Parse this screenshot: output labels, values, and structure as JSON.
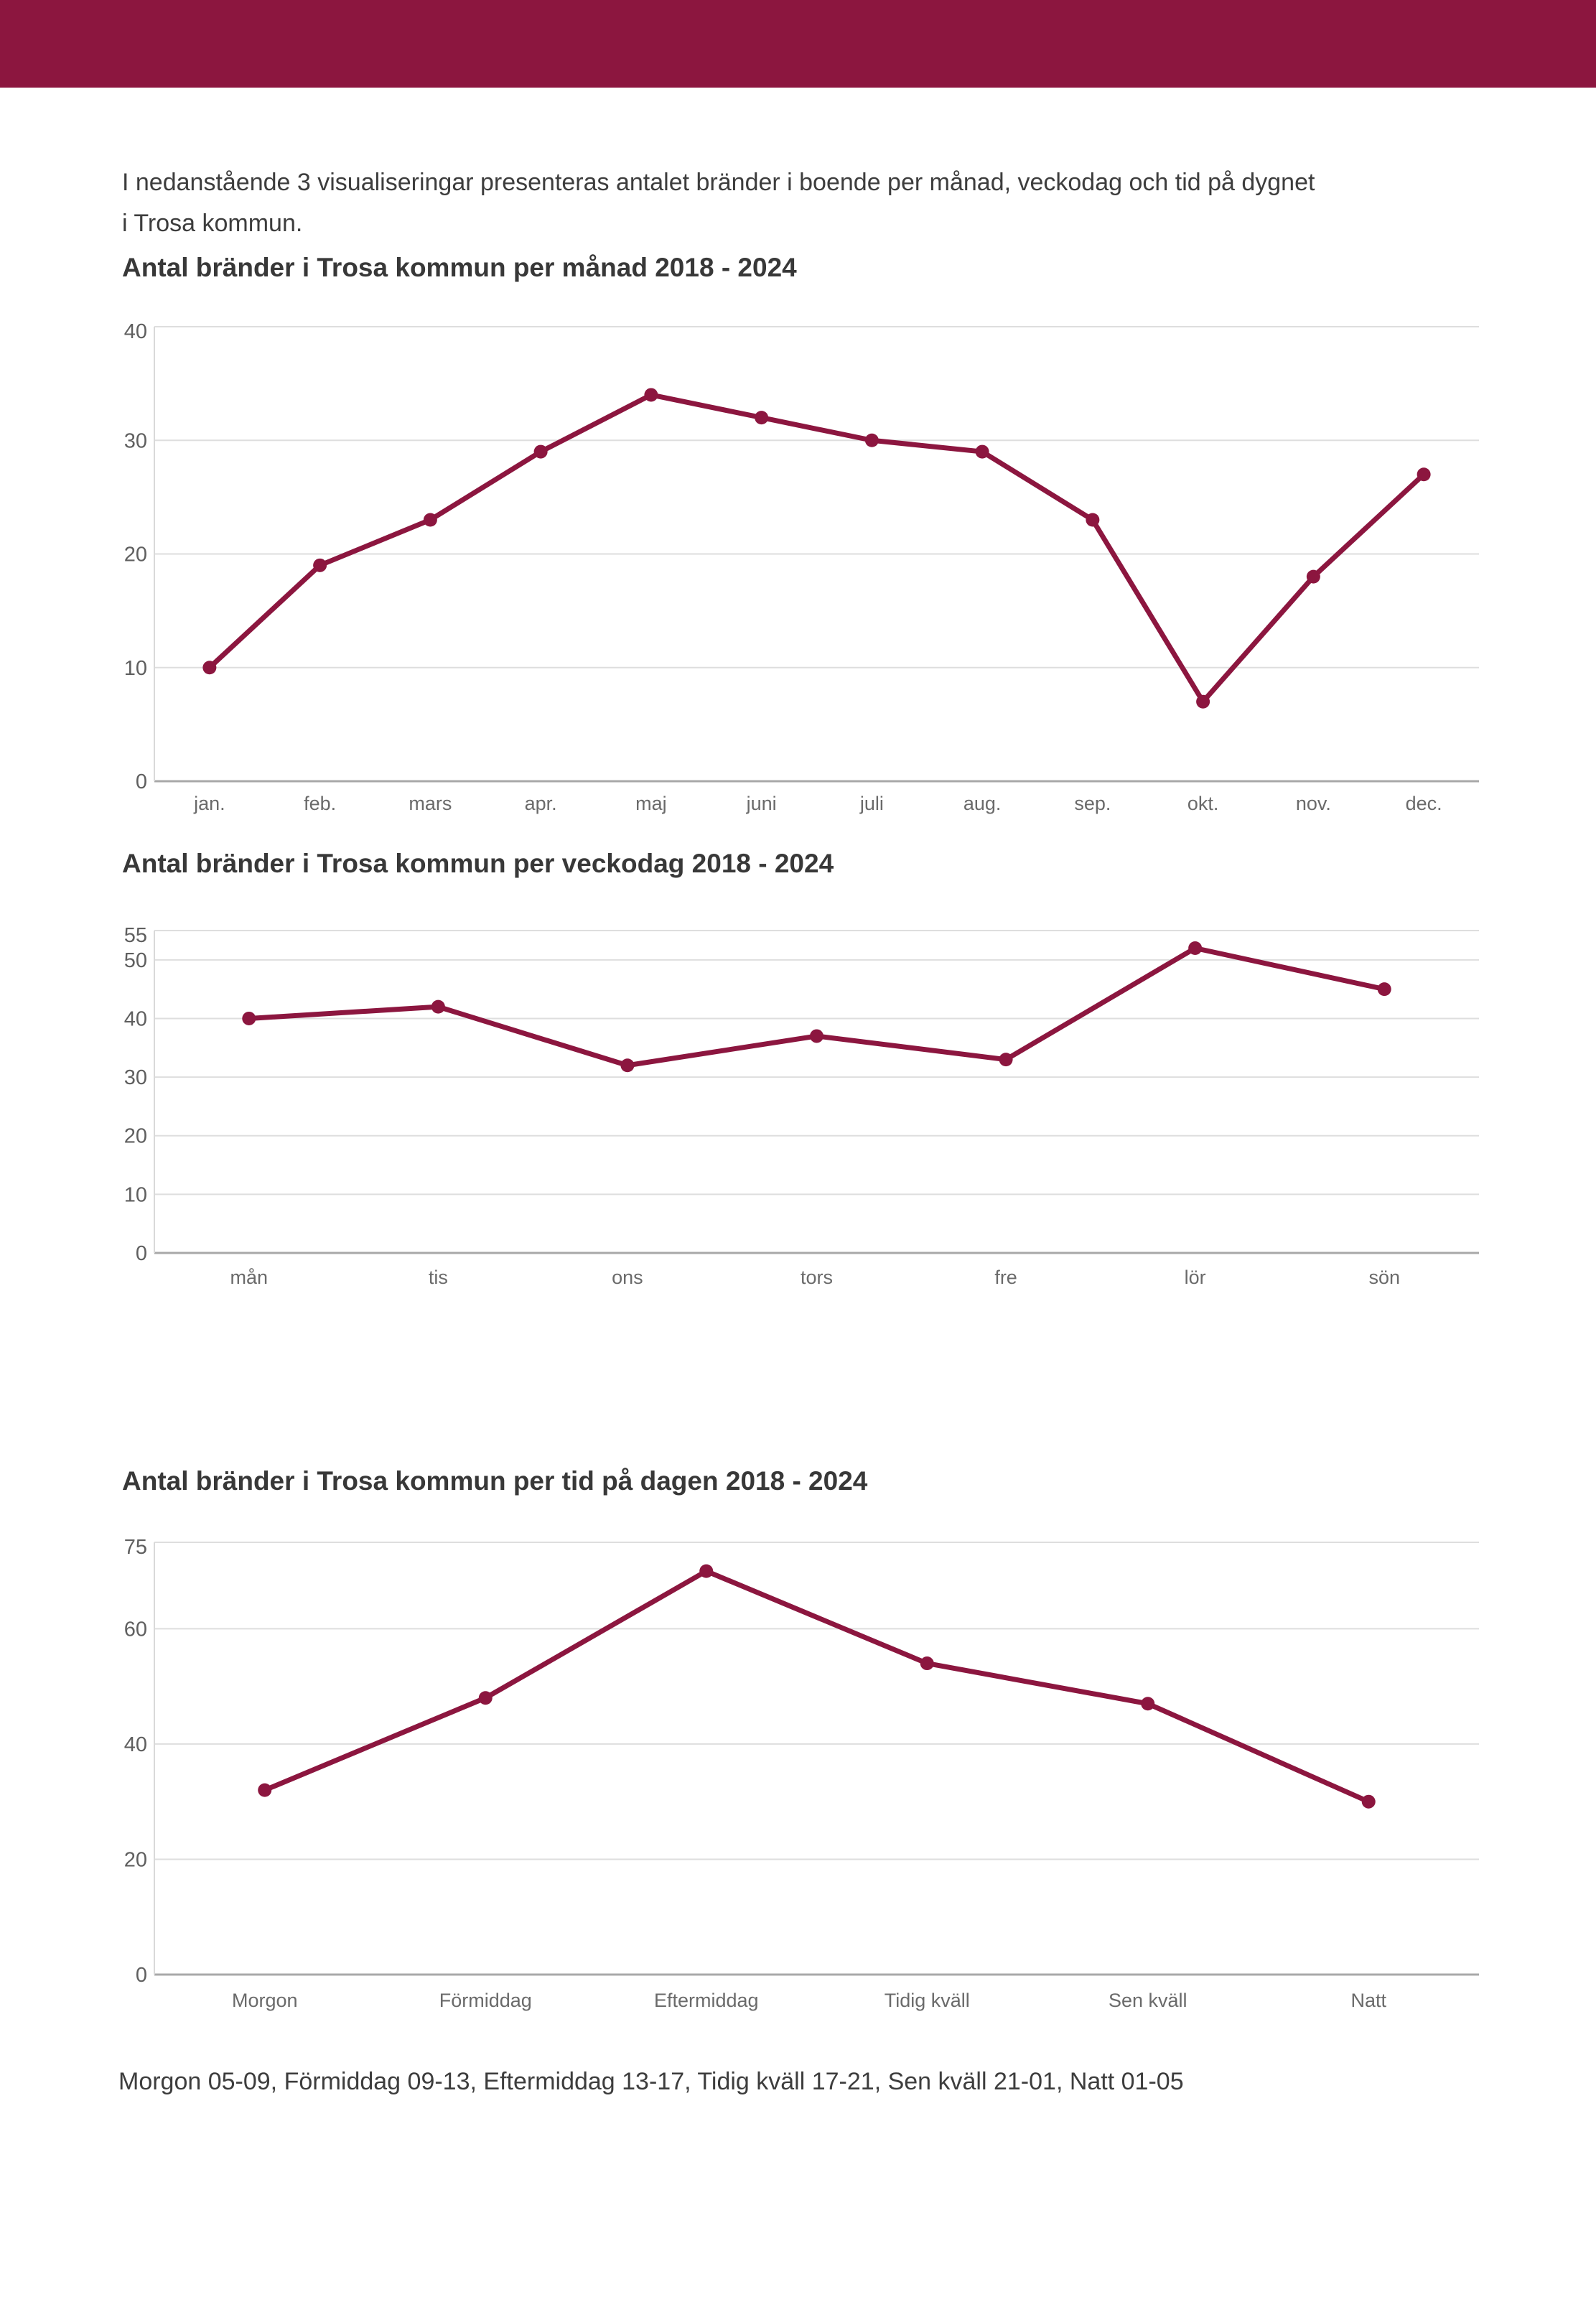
{
  "page": {
    "intro_line1": "I nedanstående 3 visualiseringar presenteras antalet bränder i boende per månad, veckodag och tid på dygnet",
    "intro_line2": "i Trosa kommun.",
    "footnote": "Morgon 05-09, Förmiddag 09-13, Eftermiddag 13-17, Tidig kväll 17-21, Sen kväll 21-01, Natt 01-05"
  },
  "colors": {
    "header_bar": "#8C163F",
    "line": "#8C163F",
    "grid": "#dedede",
    "zero_axis": "#a8a8a8",
    "left_axis": "#d9d9d9",
    "y_tick_label": "#5f5f5f",
    "x_tick_label": "#6a6a6a"
  },
  "chart_data": [
    {
      "type": "line",
      "title": "Antal bränder i Trosa kommun per månad 2018 - 2024",
      "categories": [
        "jan.",
        "feb.",
        "mars",
        "apr.",
        "maj",
        "juni",
        "juli",
        "aug.",
        "sep.",
        "okt.",
        "nov.",
        "dec."
      ],
      "values": [
        10,
        19,
        23,
        29,
        34,
        32,
        30,
        29,
        23,
        7,
        18,
        27
      ],
      "xlabel": "",
      "ylabel": "",
      "ylim": [
        0,
        40
      ],
      "yticks": [
        0,
        10,
        20,
        30,
        40
      ],
      "grid": true,
      "legend": "none"
    },
    {
      "type": "line",
      "title": "Antal bränder i Trosa kommun per veckodag 2018 - 2024",
      "categories": [
        "mån",
        "tis",
        "ons",
        "tors",
        "fre",
        "lör",
        "sön"
      ],
      "values": [
        40,
        42,
        32,
        37,
        33,
        52,
        45
      ],
      "xlabel": "",
      "ylabel": "",
      "ylim": [
        0,
        55
      ],
      "yticks": [
        0,
        10,
        20,
        30,
        40,
        50,
        55
      ],
      "grid": true,
      "legend": "none"
    },
    {
      "type": "line",
      "title": "Antal bränder i Trosa kommun per tid på dagen 2018 - 2024",
      "categories": [
        "Morgon",
        "Förmiddag",
        "Eftermiddag",
        "Tidig kväll",
        "Sen kväll",
        "Natt"
      ],
      "values": [
        32,
        48,
        70,
        54,
        47,
        30
      ],
      "xlabel": "",
      "ylabel": "",
      "ylim": [
        0,
        75
      ],
      "yticks": [
        0,
        20,
        40,
        60,
        75
      ],
      "grid": true,
      "legend": "none"
    }
  ]
}
